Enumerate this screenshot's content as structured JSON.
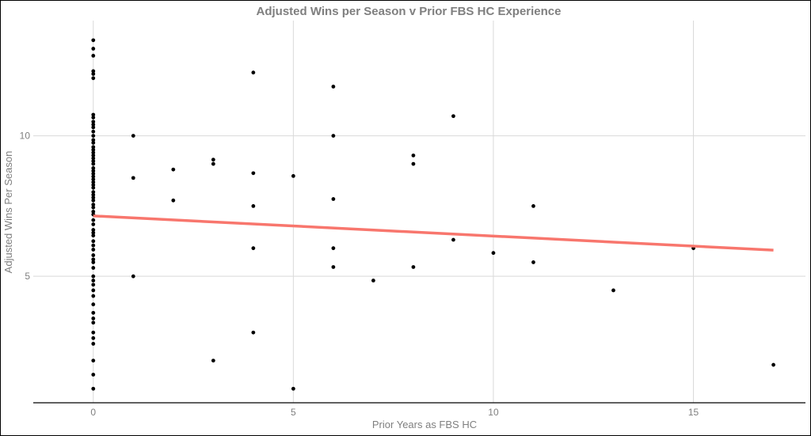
{
  "chart_data": {
    "type": "scatter",
    "title": "Adjusted Wins per Season v Prior FBS HC Experience",
    "xlabel": "Prior Years as FBS HC",
    "ylabel": "Adjusted Wins Per Season",
    "xlim": [
      -1.5,
      17.8
    ],
    "ylim": [
      0.5,
      14.1
    ],
    "x_ticks": [
      0,
      5,
      10,
      15
    ],
    "y_ticks": [
      5,
      10
    ],
    "grid": true,
    "colors": {
      "points": "#000000",
      "trend": "#f8766d"
    },
    "points": [
      {
        "x": 0,
        "y": 13.4
      },
      {
        "x": 0,
        "y": 13.1
      },
      {
        "x": 0,
        "y": 12.85
      },
      {
        "x": 0,
        "y": 12.3
      },
      {
        "x": 0,
        "y": 12.2
      },
      {
        "x": 0,
        "y": 12.05
      },
      {
        "x": 0,
        "y": 10.75
      },
      {
        "x": 0,
        "y": 10.65
      },
      {
        "x": 0,
        "y": 10.5
      },
      {
        "x": 0,
        "y": 10.4
      },
      {
        "x": 0,
        "y": 10.3
      },
      {
        "x": 0,
        "y": 10.15
      },
      {
        "x": 0,
        "y": 10.0
      },
      {
        "x": 0,
        "y": 9.85
      },
      {
        "x": 0,
        "y": 9.75
      },
      {
        "x": 0,
        "y": 9.6
      },
      {
        "x": 0,
        "y": 9.5
      },
      {
        "x": 0,
        "y": 9.4
      },
      {
        "x": 0,
        "y": 9.3
      },
      {
        "x": 0,
        "y": 9.2
      },
      {
        "x": 0,
        "y": 9.1
      },
      {
        "x": 0,
        "y": 9.0
      },
      {
        "x": 0,
        "y": 8.85
      },
      {
        "x": 0,
        "y": 8.75
      },
      {
        "x": 0,
        "y": 8.65
      },
      {
        "x": 0,
        "y": 8.55
      },
      {
        "x": 0,
        "y": 8.45
      },
      {
        "x": 0,
        "y": 8.35
      },
      {
        "x": 0,
        "y": 8.25
      },
      {
        "x": 0,
        "y": 8.15
      },
      {
        "x": 0,
        "y": 8.0
      },
      {
        "x": 0,
        "y": 7.9
      },
      {
        "x": 0,
        "y": 7.8
      },
      {
        "x": 0,
        "y": 7.7
      },
      {
        "x": 0,
        "y": 7.55
      },
      {
        "x": 0,
        "y": 7.45
      },
      {
        "x": 0,
        "y": 7.3
      },
      {
        "x": 0,
        "y": 7.2
      },
      {
        "x": 0,
        "y": 7.0
      },
      {
        "x": 0,
        "y": 6.85
      },
      {
        "x": 0,
        "y": 6.65
      },
      {
        "x": 0,
        "y": 6.55
      },
      {
        "x": 0,
        "y": 6.45
      },
      {
        "x": 0,
        "y": 6.25
      },
      {
        "x": 0,
        "y": 6.1
      },
      {
        "x": 0,
        "y": 5.95
      },
      {
        "x": 0,
        "y": 5.75
      },
      {
        "x": 0,
        "y": 5.6
      },
      {
        "x": 0,
        "y": 5.5
      },
      {
        "x": 0,
        "y": 5.3
      },
      {
        "x": 0,
        "y": 5.0
      },
      {
        "x": 0,
        "y": 4.85
      },
      {
        "x": 0,
        "y": 4.7
      },
      {
        "x": 0,
        "y": 4.5
      },
      {
        "x": 0,
        "y": 4.3
      },
      {
        "x": 0,
        "y": 4.0
      },
      {
        "x": 0,
        "y": 3.7
      },
      {
        "x": 0,
        "y": 3.5
      },
      {
        "x": 0,
        "y": 3.35
      },
      {
        "x": 0,
        "y": 3.0
      },
      {
        "x": 0,
        "y": 2.8
      },
      {
        "x": 0,
        "y": 2.6
      },
      {
        "x": 0,
        "y": 2.0
      },
      {
        "x": 0,
        "y": 1.5
      },
      {
        "x": 0,
        "y": 1.0
      },
      {
        "x": 1,
        "y": 10.0
      },
      {
        "x": 1,
        "y": 8.5
      },
      {
        "x": 1,
        "y": 5.0
      },
      {
        "x": 2,
        "y": 8.8
      },
      {
        "x": 2,
        "y": 7.7
      },
      {
        "x": 3,
        "y": 9.15
      },
      {
        "x": 3,
        "y": 9.0
      },
      {
        "x": 3,
        "y": 2.0
      },
      {
        "x": 4,
        "y": 12.25
      },
      {
        "x": 4,
        "y": 8.67
      },
      {
        "x": 4,
        "y": 7.5
      },
      {
        "x": 4,
        "y": 6.0
      },
      {
        "x": 4,
        "y": 3.0
      },
      {
        "x": 5,
        "y": 8.57
      },
      {
        "x": 5,
        "y": 1.0
      },
      {
        "x": 6,
        "y": 11.75
      },
      {
        "x": 6,
        "y": 10.0
      },
      {
        "x": 6,
        "y": 7.75
      },
      {
        "x": 6,
        "y": 6.0
      },
      {
        "x": 6,
        "y": 5.33
      },
      {
        "x": 7,
        "y": 4.85
      },
      {
        "x": 8,
        "y": 9.3
      },
      {
        "x": 8,
        "y": 9.0
      },
      {
        "x": 8,
        "y": 5.33
      },
      {
        "x": 9,
        "y": 10.7
      },
      {
        "x": 9,
        "y": 6.3
      },
      {
        "x": 10,
        "y": 5.83
      },
      {
        "x": 11,
        "y": 7.5
      },
      {
        "x": 11,
        "y": 5.5
      },
      {
        "x": 13,
        "y": 4.5
      },
      {
        "x": 15,
        "y": 6.0
      },
      {
        "x": 17,
        "y": 1.85
      }
    ],
    "trend_line": {
      "x": [
        0,
        17
      ],
      "y": [
        7.15,
        5.93
      ]
    }
  }
}
